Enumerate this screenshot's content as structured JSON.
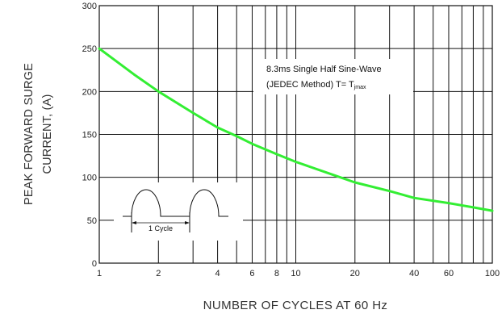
{
  "chart_data": {
    "type": "line",
    "title": "",
    "xlabel": "NUMBER OF CYCLES AT 60 Hz",
    "ylabel_lines": [
      "PEAK FORWARD SURGE",
      "CURRENT, (A)"
    ],
    "xscale": "log",
    "xlim": [
      1,
      100
    ],
    "ylim": [
      0,
      300
    ],
    "x_ticks": [
      1,
      2,
      4,
      6,
      8,
      10,
      20,
      40,
      60,
      100
    ],
    "y_ticks": [
      0,
      50,
      100,
      150,
      200,
      250,
      300
    ],
    "grid": true,
    "series": [
      {
        "color": "#33ee33",
        "x": [
          1,
          1.5,
          2,
          3,
          4,
          5,
          6,
          8,
          10,
          15,
          20,
          30,
          40,
          60,
          80,
          100
        ],
        "y": [
          250,
          220,
          200,
          175,
          158,
          148,
          139,
          127,
          118,
          104,
          94,
          84,
          76,
          70,
          65,
          61
        ]
      }
    ],
    "annotation": {
      "line1": "8.3ms Single Half Sine-Wave",
      "line2_main": "(JEDEC Method) T= T",
      "line2_sub": "jmax"
    },
    "inset_label": "1 Cycle"
  }
}
